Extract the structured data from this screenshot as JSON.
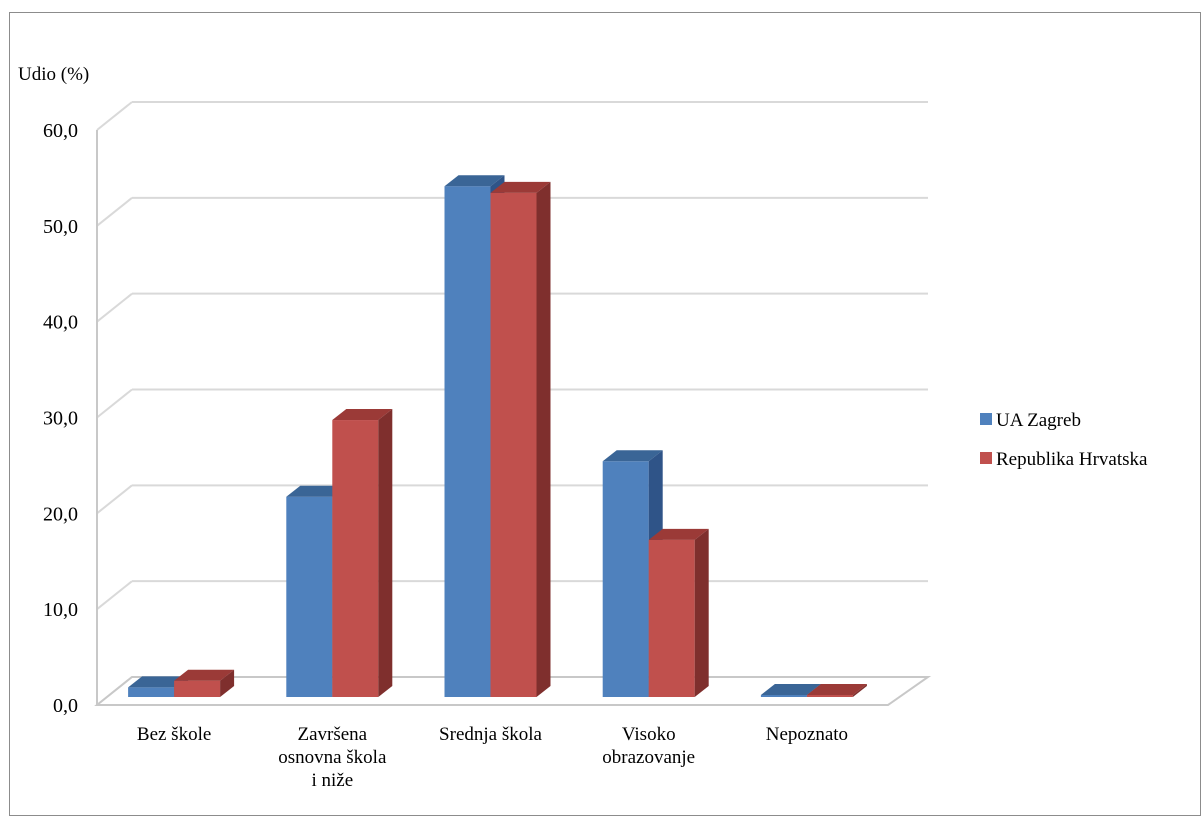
{
  "chart_data": {
    "type": "bar",
    "title": "",
    "ylabel": "Udio (%)",
    "xlabel": "",
    "ylim": [
      0,
      60
    ],
    "yticks": [
      0,
      10,
      20,
      30,
      40,
      50,
      60
    ],
    "ytick_labels": [
      "0,0",
      "10,0",
      "20,0",
      "30,0",
      "40,0",
      "50,0",
      "60,0"
    ],
    "categories": [
      [
        "Bez škole"
      ],
      [
        "Završena",
        "osnovna škola",
        "i niže"
      ],
      [
        "Srednja škola"
      ],
      [
        "Visoko",
        "obrazovanje"
      ],
      [
        "Nepoznato"
      ]
    ],
    "series": [
      {
        "name": "UA Zagreb",
        "values": [
          1.0,
          20.9,
          53.3,
          24.6,
          0.1
        ]
      },
      {
        "name": "Republika Hrvatska",
        "values": [
          1.7,
          28.9,
          52.6,
          16.4,
          0.1
        ]
      }
    ],
    "grid": true,
    "legend_position": "right",
    "colors": {
      "UA Zagreb": {
        "front": "#4f81bd",
        "top": "#3a6596",
        "side": "#2f5488"
      },
      "Republika Hrvatska": {
        "front": "#c0504d",
        "top": "#9b3a37",
        "side": "#7f2f2d"
      },
      "grid": "#d9d9d9",
      "floor": "#c8c8c8"
    }
  }
}
